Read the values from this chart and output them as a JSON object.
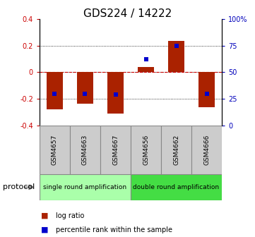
{
  "title": "GDS224 / 14222",
  "samples": [
    "GSM4657",
    "GSM4663",
    "GSM4667",
    "GSM4656",
    "GSM4662",
    "GSM4666"
  ],
  "log_ratios": [
    -0.28,
    -0.235,
    -0.31,
    0.04,
    0.235,
    -0.26
  ],
  "percentile_ranks": [
    30,
    30,
    29,
    62,
    75,
    30
  ],
  "protocol_groups": [
    {
      "label": "single round amplification",
      "n_samples": 3,
      "color": "#aaffaa"
    },
    {
      "label": "double round amplification",
      "n_samples": 3,
      "color": "#44dd44"
    }
  ],
  "bar_color": "#aa2200",
  "dot_color": "#0000cc",
  "ylim_left": [
    -0.4,
    0.4
  ],
  "ylim_right": [
    0,
    100
  ],
  "yticks_left": [
    -0.4,
    -0.2,
    0.0,
    0.2,
    0.4
  ],
  "yticks_right": [
    0,
    25,
    50,
    75,
    100
  ],
  "ytick_labels_right": [
    "0",
    "25",
    "50",
    "75",
    "100%"
  ],
  "bar_width": 0.55,
  "dot_size": 25,
  "title_fontsize": 11,
  "tick_fontsize": 7,
  "legend_fontsize": 7,
  "grid_yticks": [
    -0.2,
    0.0,
    0.2
  ],
  "left_tick_color": "#cc0000",
  "right_tick_color": "#0000bb",
  "zero_line_color": "#cc0000",
  "sample_box_color": "#cccccc",
  "sample_text_fontsize": 6.5
}
